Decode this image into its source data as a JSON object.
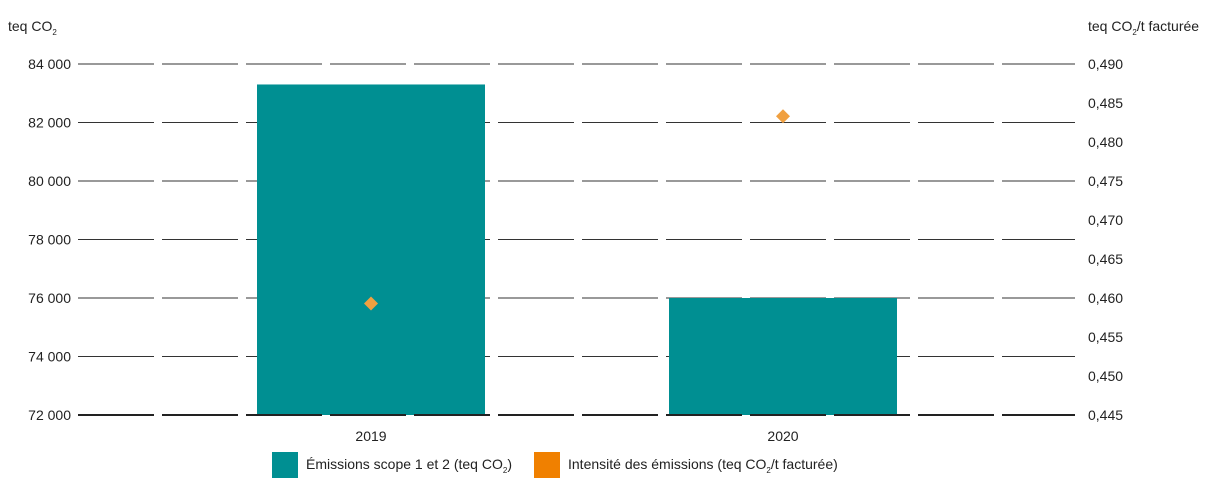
{
  "chart_data": {
    "type": "bar",
    "categories": [
      "2019",
      "2020"
    ],
    "left_axis": {
      "label": "teq CO2",
      "ylim": [
        72000,
        84000
      ],
      "ticks": [
        "72 000",
        "74 000",
        "76 000",
        "78 000",
        "80 000",
        "82 000",
        "84 000"
      ]
    },
    "right_axis": {
      "label": "teq CO2/t facturée",
      "ylim": [
        0.445,
        0.49
      ],
      "ticks": [
        "0,445",
        "0,450",
        "0,455",
        "0,460",
        "0,465",
        "0,470",
        "0,475",
        "0,480",
        "0,485",
        "0,490"
      ]
    },
    "series": [
      {
        "name": "Émissions scope 1 et 2 (teq CO2)",
        "type": "bar",
        "axis": "left",
        "color": "#008f92",
        "values": [
          83300,
          76000
        ]
      },
      {
        "name": "Intensité des émissions (teq CO2/t facturée)",
        "type": "scatter",
        "axis": "right",
        "marker": "diamond",
        "color": "#f0a040",
        "values": [
          0.4593,
          0.4833
        ]
      }
    ],
    "legend_position": "bottom",
    "grid": true
  },
  "legend": {
    "bars_label_pre": "Émissions scope 1 et 2 (teq CO",
    "bars_label_sub": "2",
    "bars_label_post": ")",
    "bars_color": "#008f92",
    "points_label_pre": "Intensité des émissions (teq CO",
    "points_label_sub": "2",
    "points_label_post": "/t facturée)",
    "points_color": "#f08000"
  },
  "axis_titles": {
    "left_pre": "teq CO",
    "left_sub": "2",
    "right_pre": "teq CO",
    "right_sub": "2",
    "right_post": "/t facturée"
  }
}
